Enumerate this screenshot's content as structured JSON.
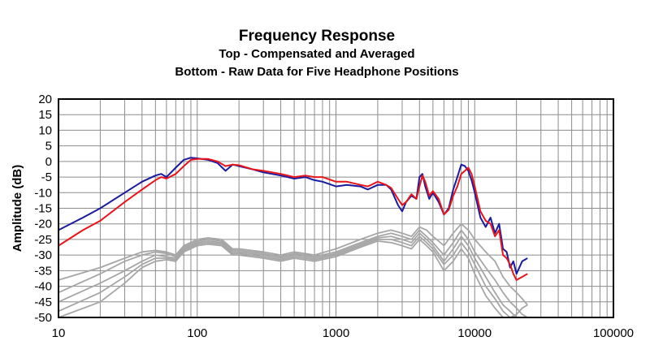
{
  "chart_data": {
    "type": "line",
    "title": "Frequency Response",
    "subtitle_1": "Top -  Compensated and Averaged",
    "subtitle_2": "Bottom - Raw Data for Five Headphone Positions",
    "xlabel": "",
    "ylabel": "Amplitude (dB)",
    "xscale": "log",
    "xlim": [
      10,
      100000
    ],
    "ylim": [
      -50,
      20
    ],
    "x_ticks": [
      10,
      100,
      1000,
      10000,
      100000
    ],
    "x_tick_labels": [
      "10",
      "100",
      "1000",
      "10000",
      "100000"
    ],
    "y_ticks": [
      20,
      15,
      10,
      5,
      0,
      -5,
      -10,
      -15,
      -20,
      -25,
      -30,
      -35,
      -40,
      -45,
      -50
    ],
    "grid": true,
    "series": [
      {
        "name": "Compensated and Averaged (blue)",
        "color": "#1a1aa0",
        "x": [
          10,
          15,
          20,
          30,
          40,
          50,
          55,
          60,
          70,
          80,
          90,
          100,
          120,
          140,
          160,
          180,
          200,
          250,
          300,
          400,
          500,
          600,
          700,
          800,
          1000,
          1200,
          1500,
          1700,
          2000,
          2300,
          2500,
          2800,
          3000,
          3200,
          3500,
          3800,
          4000,
          4200,
          4400,
          4700,
          5000,
          5500,
          6000,
          6500,
          7000,
          7500,
          8000,
          8500,
          9000,
          9500,
          10000,
          11000,
          12000,
          13000,
          14000,
          15000,
          16000,
          17000,
          18000,
          19000,
          20000,
          22000,
          24000
        ],
        "y": [
          -22,
          -18,
          -15,
          -10,
          -6.5,
          -4.5,
          -4,
          -5,
          -2,
          0.5,
          1.2,
          1,
          0.5,
          -0.5,
          -3,
          -1,
          -1.5,
          -2.5,
          -3.5,
          -4.5,
          -5.5,
          -5,
          -6,
          -6.5,
          -8,
          -7.5,
          -8,
          -9,
          -7.5,
          -7.5,
          -9,
          -14,
          -16,
          -13,
          -11,
          -12,
          -5,
          -4,
          -8,
          -12,
          -10,
          -13,
          -17,
          -15,
          -9,
          -5,
          -1,
          -1.5,
          -3,
          -6,
          -10,
          -18,
          -21,
          -18,
          -23,
          -20,
          -28,
          -29,
          -34,
          -32,
          -36,
          -32,
          -31
        ]
      },
      {
        "name": "Compensated and Averaged (red)",
        "color": "#e8141c",
        "x": [
          10,
          15,
          20,
          30,
          40,
          50,
          55,
          60,
          70,
          80,
          90,
          100,
          120,
          140,
          160,
          180,
          200,
          250,
          300,
          400,
          500,
          600,
          700,
          800,
          1000,
          1200,
          1500,
          1700,
          2000,
          2300,
          2500,
          2800,
          3000,
          3200,
          3500,
          3800,
          4000,
          4200,
          4400,
          4700,
          5000,
          5500,
          6000,
          6500,
          7000,
          7500,
          8000,
          8500,
          9000,
          9500,
          10000,
          11000,
          12000,
          13000,
          14000,
          15000,
          16000,
          17000,
          18000,
          19000,
          20000,
          22000,
          24000
        ],
        "y": [
          -27,
          -22,
          -19,
          -13,
          -9,
          -6,
          -5,
          -5.5,
          -4,
          -1.5,
          0.5,
          0.8,
          0.8,
          0,
          -1.5,
          -1,
          -1.2,
          -2.5,
          -3,
          -4,
          -5,
          -4.5,
          -5,
          -5,
          -6.5,
          -6.5,
          -7.5,
          -8,
          -6.5,
          -7.5,
          -8.5,
          -12,
          -14,
          -13,
          -10.5,
          -12,
          -8,
          -4.5,
          -6.5,
          -11,
          -9.5,
          -12,
          -17,
          -15.5,
          -11,
          -8,
          -4,
          -3,
          -2,
          -4,
          -8,
          -16,
          -19,
          -20,
          -24,
          -22,
          -30,
          -31,
          -33,
          -36,
          -38,
          -37,
          -36
        ]
      },
      {
        "name": "Raw Data Position 1",
        "color": "#a6a6a6",
        "x": [
          10,
          20,
          30,
          40,
          50,
          60,
          70,
          80,
          100,
          120,
          150,
          180,
          200,
          300,
          400,
          500,
          700,
          1000,
          1500,
          2000,
          2500,
          3000,
          3500,
          4000,
          4500,
          5000,
          6000,
          7000,
          8000,
          9000,
          10000,
          12000,
          14000,
          16000,
          18000,
          20000,
          22000,
          24000
        ],
        "y": [
          -38,
          -34,
          -31,
          -29,
          -28.5,
          -29,
          -30,
          -27,
          -25,
          -24.5,
          -25,
          -28,
          -28,
          -29,
          -30,
          -29,
          -30,
          -28,
          -25,
          -23,
          -22,
          -23,
          -24,
          -21,
          -22,
          -24,
          -27,
          -23,
          -20,
          -22,
          -25,
          -29,
          -32,
          -37,
          -40,
          -42,
          -44,
          -46
        ]
      },
      {
        "name": "Raw Data Position 2",
        "color": "#a6a6a6",
        "x": [
          10,
          20,
          30,
          40,
          50,
          60,
          70,
          80,
          100,
          120,
          150,
          180,
          200,
          300,
          400,
          500,
          700,
          1000,
          1500,
          2000,
          2500,
          3000,
          3500,
          4000,
          4500,
          5000,
          6000,
          7000,
          8000,
          9000,
          10000,
          12000,
          14000,
          16000,
          18000,
          20000,
          22000,
          24000
        ],
        "y": [
          -42,
          -36,
          -32,
          -30,
          -29,
          -29.5,
          -30.5,
          -27.5,
          -25.5,
          -25,
          -25.5,
          -28.5,
          -28.5,
          -29.5,
          -30.5,
          -29.5,
          -30.5,
          -29,
          -26,
          -24,
          -23,
          -24,
          -25,
          -22,
          -24,
          -26,
          -30,
          -26,
          -22,
          -25,
          -29,
          -34,
          -38,
          -42,
          -45,
          -47,
          -49,
          -50
        ]
      },
      {
        "name": "Raw Data Position 3",
        "color": "#a6a6a6",
        "x": [
          10,
          20,
          30,
          40,
          50,
          60,
          70,
          80,
          100,
          120,
          150,
          180,
          200,
          300,
          400,
          500,
          700,
          1000,
          1500,
          2000,
          2500,
          3000,
          3500,
          4000,
          4500,
          5000,
          6000,
          7000,
          8000,
          9000,
          10000,
          12000,
          14000,
          16000,
          18000,
          20000,
          22000,
          24000
        ],
        "y": [
          -45,
          -39,
          -35,
          -32,
          -30,
          -30.5,
          -31,
          -28,
          -26,
          -25.5,
          -26,
          -29,
          -29,
          -30,
          -31,
          -30,
          -31,
          -29.5,
          -26.5,
          -24.5,
          -24,
          -25,
          -26,
          -23,
          -25,
          -27,
          -32,
          -28,
          -24,
          -27,
          -31,
          -37,
          -42,
          -46,
          -48,
          -50,
          -50,
          -50
        ]
      },
      {
        "name": "Raw Data Position 4",
        "color": "#a6a6a6",
        "x": [
          10,
          20,
          30,
          40,
          50,
          60,
          70,
          80,
          100,
          120,
          150,
          180,
          200,
          300,
          400,
          500,
          700,
          1000,
          1500,
          2000,
          2500,
          3000,
          3500,
          4000,
          4500,
          5000,
          6000,
          7000,
          8000,
          9000,
          10000,
          12000,
          14000,
          16000,
          18000,
          20000,
          22000,
          24000
        ],
        "y": [
          -48,
          -42,
          -37,
          -33,
          -31,
          -31,
          -31.5,
          -28.5,
          -26.5,
          -26,
          -26.5,
          -29.5,
          -29.5,
          -30.5,
          -31.5,
          -30.5,
          -31.5,
          -30,
          -27,
          -25,
          -25,
          -26,
          -27,
          -24,
          -26,
          -28,
          -33,
          -30,
          -26,
          -29,
          -33,
          -40,
          -44,
          -48,
          -50,
          -50,
          -50,
          -50
        ]
      },
      {
        "name": "Raw Data Position 5",
        "color": "#a6a6a6",
        "x": [
          10,
          20,
          30,
          40,
          50,
          60,
          70,
          80,
          100,
          120,
          150,
          180,
          200,
          300,
          400,
          500,
          700,
          1000,
          1500,
          2000,
          2500,
          3000,
          3500,
          4000,
          4500,
          5000,
          6000,
          7000,
          8000,
          9000,
          10000,
          12000,
          14000,
          16000,
          18000,
          20000,
          22000,
          24000
        ],
        "y": [
          -50,
          -45,
          -39,
          -34,
          -32,
          -31.5,
          -32,
          -29,
          -27,
          -26.5,
          -27,
          -30,
          -30,
          -31,
          -32,
          -31,
          -32,
          -30.5,
          -27.5,
          -25.5,
          -26,
          -27,
          -28,
          -25,
          -27,
          -29,
          -35,
          -32,
          -28,
          -31,
          -36,
          -43,
          -47,
          -50,
          -50,
          -49,
          -47,
          -46
        ]
      }
    ]
  }
}
